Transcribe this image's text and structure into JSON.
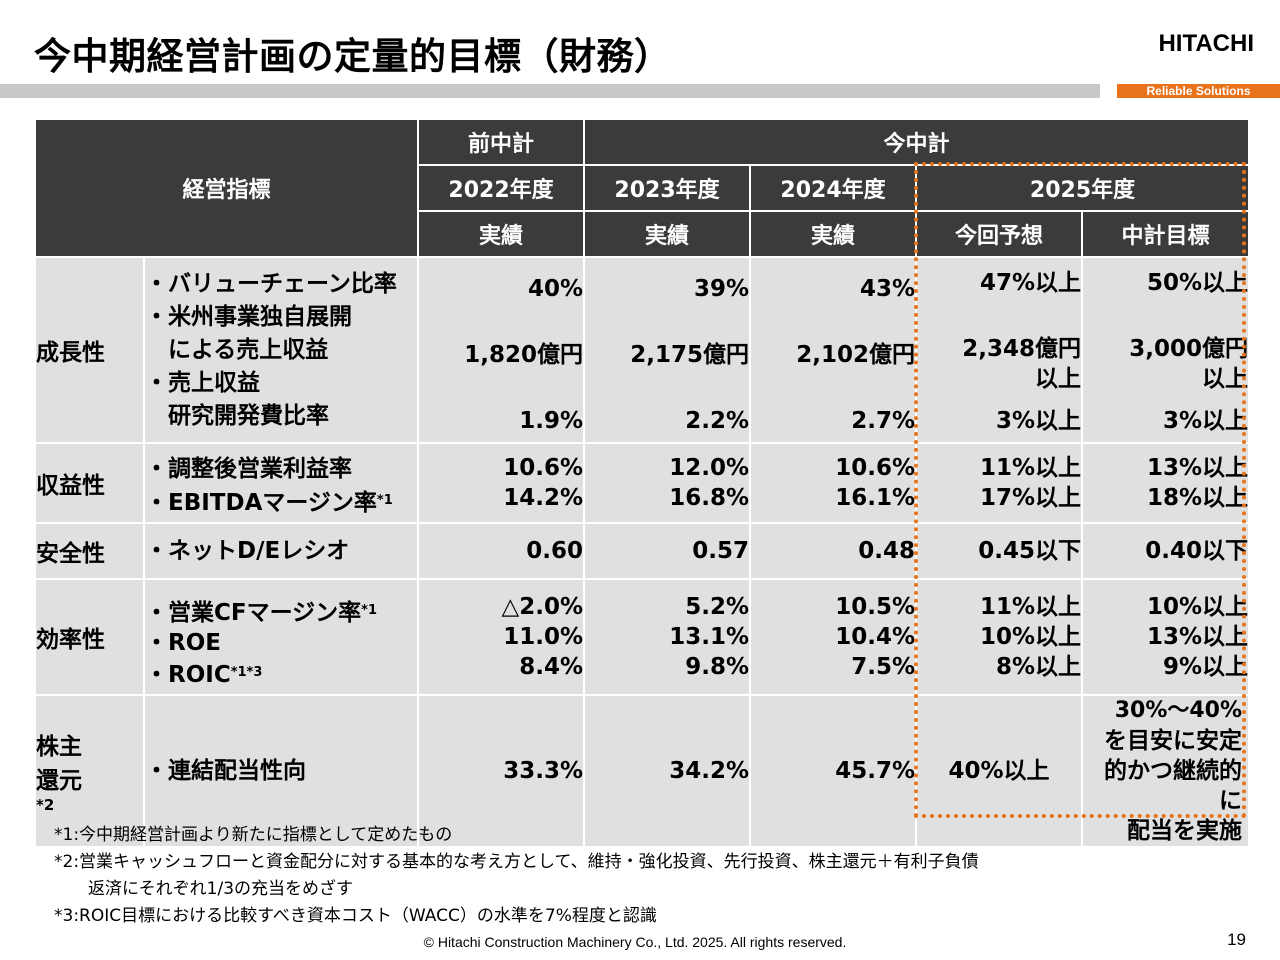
{
  "header": {
    "title": "今中期経営計画の定量的目標（財務）",
    "logo": "HITACHI",
    "tagline": "Reliable Solutions"
  },
  "colors": {
    "header_bg": "#3b3b3b",
    "cell_bg": "#e0e0e0",
    "accent": "#e8731c",
    "rule": "#c8c8c8"
  },
  "table": {
    "indicator_header": "経営指標",
    "prev_plan": "前中計",
    "curr_plan": "今中計",
    "years": [
      "2022年度",
      "2023年度",
      "2024年度",
      "2025年度"
    ],
    "subheaders": [
      "実績",
      "実績",
      "実績",
      "今回予想",
      "中計目標"
    ],
    "rows": [
      {
        "category": "成長性",
        "indicators": [
          "・バリューチェーン比率",
          "・米州事業独自展開",
          "　による売上収益",
          "・売上収益",
          "　研究開発費比率"
        ],
        "y2022": [
          "40%",
          "1,820億円",
          "1.9%"
        ],
        "y2023": [
          "39%",
          "2,175億円",
          "2.2%"
        ],
        "y2024": [
          "43%",
          "2,102億円",
          "2.7%"
        ],
        "forecast": [
          "47%以上",
          "2,348億円",
          "以上",
          "3%以上"
        ],
        "target": [
          "50%以上",
          "3,000億円",
          "以上",
          "3%以上"
        ]
      },
      {
        "category": "収益性",
        "indicators": [
          "・調整後営業利益率",
          "・EBITDAマージン率"
        ],
        "footnote_marks": [
          "",
          "*1"
        ],
        "y2022": [
          "10.6%",
          "14.2%"
        ],
        "y2023": [
          "12.0%",
          "16.8%"
        ],
        "y2024": [
          "10.6%",
          "16.1%"
        ],
        "forecast": [
          "11%以上",
          "17%以上"
        ],
        "target": [
          "13%以上",
          "18%以上"
        ]
      },
      {
        "category": "安全性",
        "indicators": [
          "・ネットD/Eレシオ"
        ],
        "y2022": [
          "0.60"
        ],
        "y2023": [
          "0.57"
        ],
        "y2024": [
          "0.48"
        ],
        "forecast": [
          "0.45以下"
        ],
        "target": [
          "0.40以下"
        ]
      },
      {
        "category": "効率性",
        "indicators": [
          "・営業CFマージン率",
          "・ROE",
          "・ROIC"
        ],
        "footnote_marks": [
          "*1",
          "",
          "*1*3"
        ],
        "y2022": [
          "△2.0%",
          "11.0%",
          "8.4%"
        ],
        "y2023": [
          "5.2%",
          "13.1%",
          "9.8%"
        ],
        "y2024": [
          "10.5%",
          "10.4%",
          "7.5%"
        ],
        "forecast": [
          "11%以上",
          "10%以上",
          "8%以上"
        ],
        "target": [
          "10%以上",
          "13%以上",
          "9%以上"
        ]
      },
      {
        "category": "株主",
        "category2": "還元",
        "category_mark": "*2",
        "indicators": [
          "・連結配当性向"
        ],
        "y2022": [
          "33.3%"
        ],
        "y2023": [
          "34.2%"
        ],
        "y2024": [
          "45.7%"
        ],
        "forecast": [
          "40%以上"
        ],
        "target": [
          "30%～40%",
          "を目安に安定",
          "的かつ継続的に",
          "配当を実施"
        ]
      }
    ]
  },
  "notes": [
    "*1:今中期経営計画より新たに指標として定めたもの",
    "*2:営業キャッシュフローと資金配分に対する基本的な考え方として、維持・強化投資、先行投資、株主還元＋有利子負債",
    "返済にそれぞれ1/3の充当をめざす",
    "*3:ROIC目標における比較すべき資本コスト（WACC）の水準を7%程度と認識"
  ],
  "footer": {
    "copyright": "© Hitachi Construction Machinery Co., Ltd. 2025. All rights reserved.",
    "page_number": "19"
  }
}
